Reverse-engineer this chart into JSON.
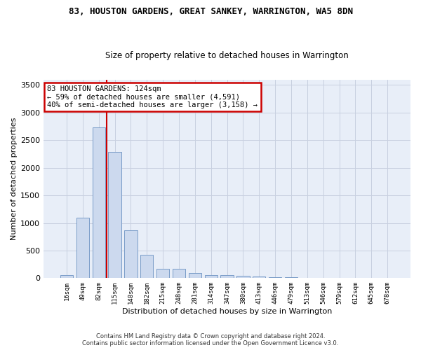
{
  "title": "83, HOUSTON GARDENS, GREAT SANKEY, WARRINGTON, WA5 8DN",
  "subtitle": "Size of property relative to detached houses in Warrington",
  "xlabel": "Distribution of detached houses by size in Warrington",
  "ylabel": "Number of detached properties",
  "categories": [
    "16sqm",
    "49sqm",
    "82sqm",
    "115sqm",
    "148sqm",
    "182sqm",
    "215sqm",
    "248sqm",
    "281sqm",
    "314sqm",
    "347sqm",
    "380sqm",
    "413sqm",
    "446sqm",
    "479sqm",
    "513sqm",
    "546sqm",
    "579sqm",
    "612sqm",
    "645sqm",
    "678sqm"
  ],
  "values": [
    55,
    1100,
    2730,
    2290,
    870,
    420,
    175,
    170,
    95,
    60,
    55,
    40,
    35,
    20,
    15,
    10,
    5,
    3,
    2,
    1,
    1
  ],
  "bar_color": "#ccd9ee",
  "bar_edge_color": "#7a9cc8",
  "property_bin_index": 3,
  "annotation_line1": "83 HOUSTON GARDENS: 124sqm",
  "annotation_line2": "← 59% of detached houses are smaller (4,591)",
  "annotation_line3": "40% of semi-detached houses are larger (3,158) →",
  "annotation_box_color": "#ffffff",
  "annotation_box_edge": "#cc0000",
  "line_color": "#cc0000",
  "grid_color": "#c8d0e0",
  "background_color": "#e8eef8",
  "ylim": [
    0,
    3600
  ],
  "yticks": [
    0,
    500,
    1000,
    1500,
    2000,
    2500,
    3000,
    3500
  ],
  "footer1": "Contains HM Land Registry data © Crown copyright and database right 2024.",
  "footer2": "Contains public sector information licensed under the Open Government Licence v3.0."
}
